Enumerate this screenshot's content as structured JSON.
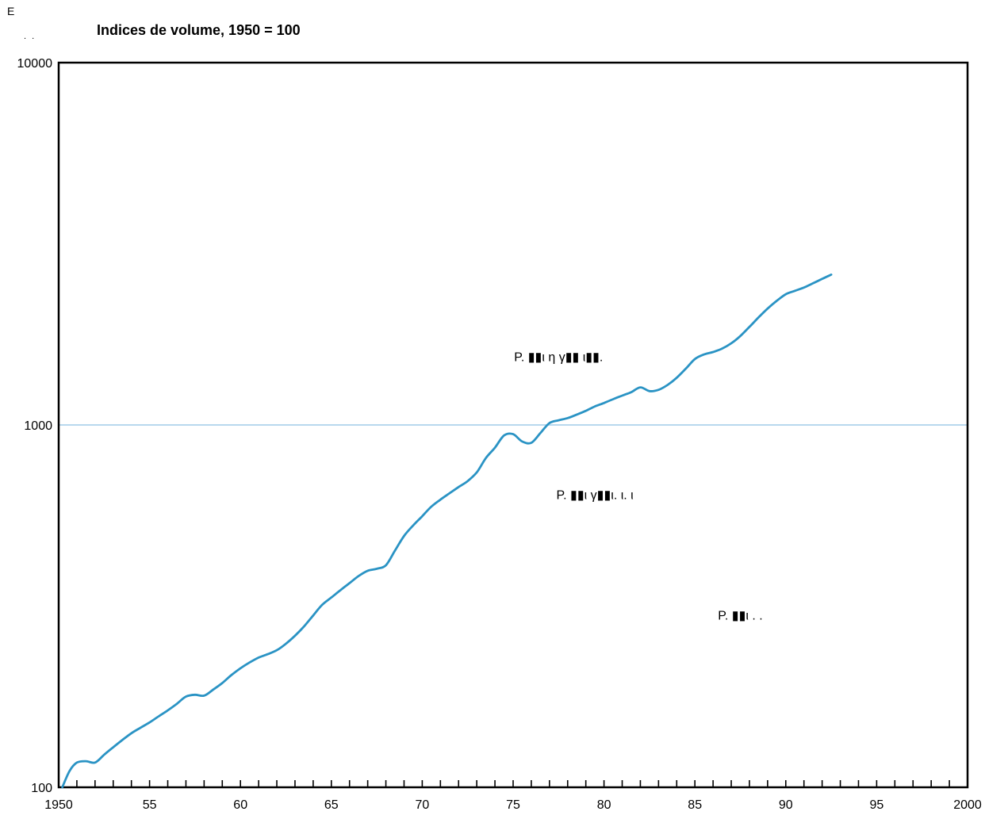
{
  "corner_mark": "E",
  "corner_dots": ". .",
  "chart_data": {
    "type": "line",
    "title": "Indices de volume, 1950 = 100",
    "xlabel": "",
    "ylabel": "",
    "x_scale": "linear",
    "y_scale": "log",
    "xlim": [
      1950,
      2000
    ],
    "ylim": [
      100,
      10000
    ],
    "x_tick_values": [
      1950,
      1955,
      1960,
      1965,
      1970,
      1975,
      1980,
      1985,
      1990,
      1995,
      2000
    ],
    "x_tick_labels": [
      "1950",
      "55",
      "60",
      "65",
      "70",
      "75",
      "80",
      "85",
      "90",
      "95",
      "2000"
    ],
    "y_tick_values": [
      100,
      1000,
      10000
    ],
    "y_tick_labels": [
      "100",
      "1000",
      "10000"
    ],
    "reference_line": {
      "y": 1000,
      "color": "#b8d8ee"
    },
    "grid": false,
    "series": [
      {
        "color": "#2a93c4",
        "x": [
          1950.2,
          1950.6,
          1951,
          1951.5,
          1952,
          1952.5,
          1953,
          1953.5,
          1954,
          1954.5,
          1955,
          1955.5,
          1956,
          1956.5,
          1957,
          1957.5,
          1958,
          1958.5,
          1959,
          1959.5,
          1960,
          1960.5,
          1961,
          1961.5,
          1962,
          1962.5,
          1963,
          1963.5,
          1964,
          1964.5,
          1965,
          1965.5,
          1966,
          1966.5,
          1967,
          1967.5,
          1968,
          1968.5,
          1969,
          1969.5,
          1970,
          1970.5,
          1971,
          1971.5,
          1972,
          1972.5,
          1973,
          1973.5,
          1974,
          1974.5,
          1975,
          1975.5,
          1976,
          1976.5,
          1977,
          1977.5,
          1978,
          1978.5,
          1979,
          1979.5,
          1980,
          1980.5,
          1981,
          1981.5,
          1982,
          1982.5,
          1983,
          1983.5,
          1984,
          1984.5,
          1985,
          1985.5,
          1986,
          1986.5,
          1987,
          1987.5,
          1988,
          1988.5,
          1989,
          1989.5,
          1990,
          1990.5,
          1991,
          1991.5,
          1992,
          1992.5
        ],
        "y": [
          100,
          111,
          117,
          118,
          117,
          123,
          129,
          135,
          141,
          146,
          151,
          157,
          163,
          170,
          178,
          180,
          179,
          186,
          194,
          204,
          213,
          221,
          228,
          233,
          239,
          249,
          262,
          278,
          298,
          319,
          334,
          350,
          366,
          383,
          396,
          401,
          410,
          450,
          494,
          528,
          560,
          595,
          622,
          648,
          674,
          700,
          740,
          810,
          866,
          935,
          943,
          900,
          893,
          950,
          1012,
          1030,
          1045,
          1068,
          1094,
          1125,
          1150,
          1178,
          1205,
          1232,
          1270,
          1240,
          1250,
          1290,
          1350,
          1430,
          1520,
          1565,
          1590,
          1625,
          1680,
          1760,
          1865,
          1980,
          2095,
          2200,
          2295,
          2345,
          2395,
          2460,
          2530,
          2600
        ]
      }
    ],
    "annotations": [
      {
        "text": "P.  ▮▮ι  η γ▮▮  ι▮▮.",
        "x": 1977.5,
        "y": 1500
      },
      {
        "text": "P.  ▮▮ι        γ▮▮ι.       ι. ι",
        "x": 1979.5,
        "y": 625
      },
      {
        "text": "P.  ▮▮ι  . .",
        "x": 1987.5,
        "y": 290
      }
    ]
  }
}
